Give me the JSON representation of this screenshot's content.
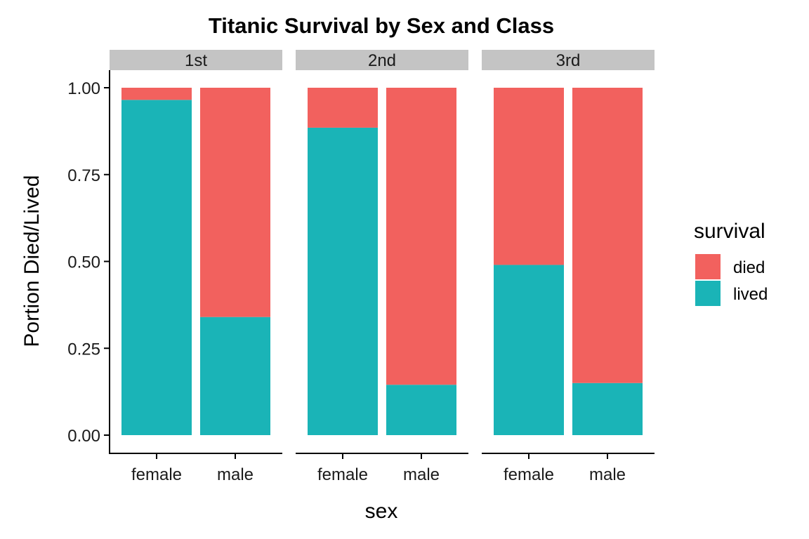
{
  "chart_data": {
    "type": "bar",
    "stacked": "fill",
    "title": "Titanic Survival by Sex and Class",
    "xlabel": "sex",
    "ylabel": "Portion Died/Lived",
    "ylim": [
      0,
      1
    ],
    "yticks": [
      "0.00",
      "0.25",
      "0.50",
      "0.75",
      "1.00"
    ],
    "grid": false,
    "facets": [
      "1st",
      "2nd",
      "3rd"
    ],
    "categories": [
      "female",
      "male"
    ],
    "series": [
      {
        "name": "died",
        "color": "#F2615E",
        "values": {
          "1st": [
            0.035,
            0.66
          ],
          "2nd": [
            0.115,
            0.855
          ],
          "3rd": [
            0.51,
            0.85
          ]
        }
      },
      {
        "name": "lived",
        "color": "#1AB4B7",
        "values": {
          "1st": [
            0.965,
            0.34
          ],
          "2nd": [
            0.885,
            0.145
          ],
          "3rd": [
            0.49,
            0.15
          ]
        }
      }
    ],
    "legend": {
      "title": "survival",
      "position": "right",
      "entries": [
        "died",
        "lived"
      ]
    }
  }
}
